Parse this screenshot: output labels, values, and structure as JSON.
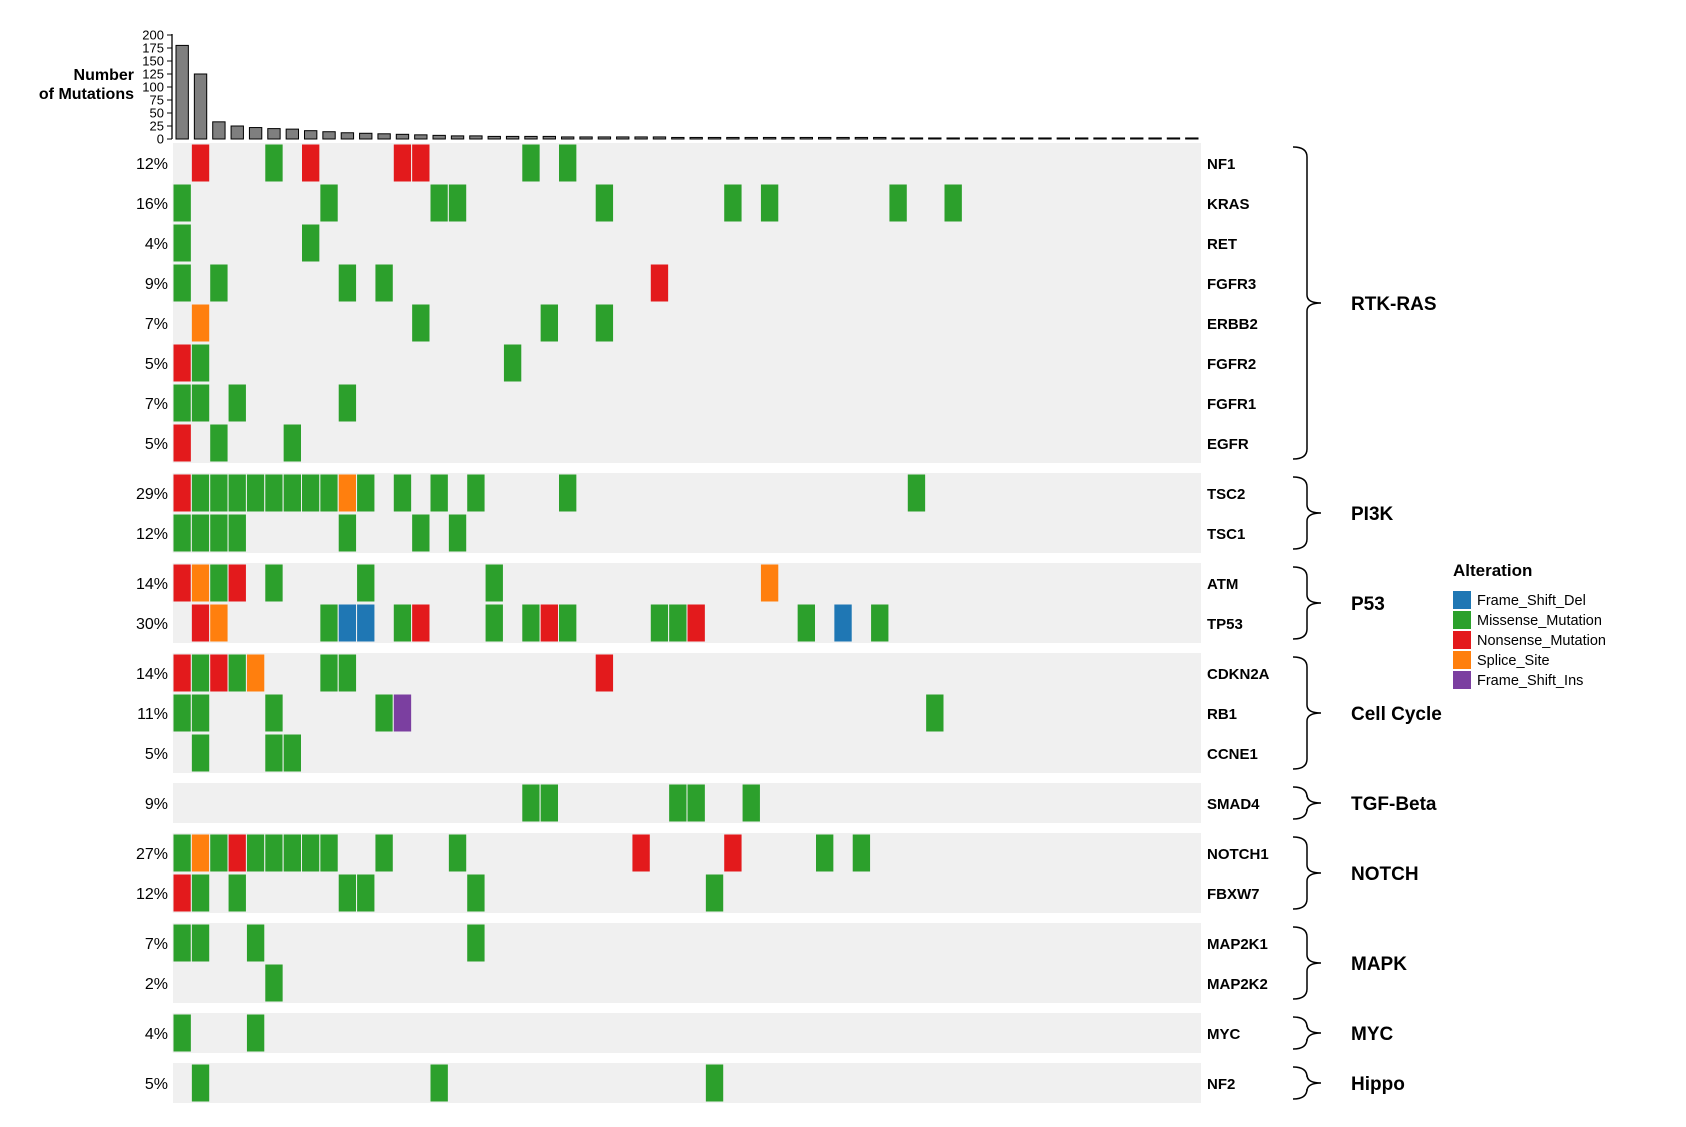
{
  "chart_data": {
    "type": "heatmap",
    "subtype": "oncoplot",
    "topbar": {
      "ylabel_line1": "Number",
      "ylabel_line2": "of Mutations",
      "ylim": [
        0,
        200
      ],
      "ticks": [
        "200",
        "175",
        "150",
        "125",
        "100",
        "75",
        "50",
        "25",
        "0"
      ],
      "bar_color": "#7f7f7f",
      "values": [
        180,
        125,
        33,
        25,
        22,
        20,
        19,
        16,
        14,
        12,
        11,
        10,
        9,
        8,
        7,
        6,
        6,
        5,
        5,
        5,
        5,
        4,
        4,
        4,
        4,
        4,
        4,
        3,
        3,
        3,
        3,
        3,
        3,
        3,
        3,
        3,
        3,
        3,
        3,
        2,
        2,
        2,
        2,
        2,
        2,
        2,
        2,
        2,
        2,
        2,
        2,
        2,
        2,
        2,
        2,
        2
      ]
    },
    "n_samples": 56,
    "legend": {
      "title": "Alteration",
      "placement": "right",
      "items": [
        {
          "key": "FSD",
          "label": "Frame_Shift_Del",
          "color": "#1f77b4"
        },
        {
          "key": "MIS",
          "label": "Missense_Mutation",
          "color": "#2ca02c"
        },
        {
          "key": "NON",
          "label": "Nonsense_Mutation",
          "color": "#e31a1c"
        },
        {
          "key": "SPL",
          "label": "Splice_Site",
          "color": "#ff7f0e"
        },
        {
          "key": "FSI",
          "label": "Frame_Shift_Ins",
          "color": "#7b3fa0"
        }
      ]
    },
    "colors": {
      "FSD": "#1f77b4",
      "MIS": "#2ca02c",
      "NON": "#e31a1c",
      "SPL": "#ff7f0e",
      "FSI": "#7b3fa0",
      "background": "#f0f0f0"
    },
    "pathways": [
      {
        "name": "RTK-RAS",
        "genes": [
          {
            "gene": "NF1",
            "pct": "12%",
            "cells": [
              [
                1,
                "NON"
              ],
              [
                5,
                "MIS"
              ],
              [
                7,
                "NON"
              ],
              [
                12,
                "NON"
              ],
              [
                13,
                "NON"
              ],
              [
                19,
                "MIS"
              ],
              [
                21,
                "MIS"
              ]
            ]
          },
          {
            "gene": "KRAS",
            "pct": "16%",
            "cells": [
              [
                0,
                "MIS"
              ],
              [
                8,
                "MIS"
              ],
              [
                14,
                "MIS"
              ],
              [
                15,
                "MIS"
              ],
              [
                23,
                "MIS"
              ],
              [
                30,
                "MIS"
              ],
              [
                32,
                "MIS"
              ],
              [
                39,
                "MIS"
              ],
              [
                42,
                "MIS"
              ]
            ]
          },
          {
            "gene": "RET",
            "pct": "4%",
            "cells": [
              [
                0,
                "MIS"
              ],
              [
                7,
                "MIS"
              ]
            ]
          },
          {
            "gene": "FGFR3",
            "pct": "9%",
            "cells": [
              [
                0,
                "MIS"
              ],
              [
                2,
                "MIS"
              ],
              [
                9,
                "MIS"
              ],
              [
                11,
                "MIS"
              ],
              [
                26,
                "NON"
              ]
            ]
          },
          {
            "gene": "ERBB2",
            "pct": "7%",
            "cells": [
              [
                1,
                "SPL"
              ],
              [
                13,
                "MIS"
              ],
              [
                20,
                "MIS"
              ],
              [
                23,
                "MIS"
              ]
            ]
          },
          {
            "gene": "FGFR2",
            "pct": "5%",
            "cells": [
              [
                0,
                "NON"
              ],
              [
                1,
                "MIS"
              ],
              [
                18,
                "MIS"
              ]
            ]
          },
          {
            "gene": "FGFR1",
            "pct": "7%",
            "cells": [
              [
                0,
                "MIS"
              ],
              [
                1,
                "MIS"
              ],
              [
                3,
                "MIS"
              ],
              [
                9,
                "MIS"
              ]
            ]
          },
          {
            "gene": "EGFR",
            "pct": "5%",
            "cells": [
              [
                0,
                "NON"
              ],
              [
                2,
                "MIS"
              ],
              [
                6,
                "MIS"
              ]
            ]
          }
        ]
      },
      {
        "name": "PI3K",
        "genes": [
          {
            "gene": "TSC2",
            "pct": "29%",
            "cells": [
              [
                0,
                "NON"
              ],
              [
                1,
                "MIS"
              ],
              [
                2,
                "MIS"
              ],
              [
                3,
                "MIS"
              ],
              [
                4,
                "MIS"
              ],
              [
                5,
                "MIS"
              ],
              [
                6,
                "MIS"
              ],
              [
                7,
                "MIS"
              ],
              [
                8,
                "MIS"
              ],
              [
                9,
                "SPL"
              ],
              [
                10,
                "MIS"
              ],
              [
                12,
                "MIS"
              ],
              [
                14,
                "MIS"
              ],
              [
                16,
                "MIS"
              ],
              [
                21,
                "MIS"
              ],
              [
                40,
                "MIS"
              ]
            ]
          },
          {
            "gene": "TSC1",
            "pct": "12%",
            "cells": [
              [
                0,
                "MIS"
              ],
              [
                1,
                "MIS"
              ],
              [
                2,
                "MIS"
              ],
              [
                3,
                "MIS"
              ],
              [
                9,
                "MIS"
              ],
              [
                13,
                "MIS"
              ],
              [
                15,
                "MIS"
              ]
            ]
          }
        ]
      },
      {
        "name": "P53",
        "genes": [
          {
            "gene": "ATM",
            "pct": "14%",
            "cells": [
              [
                0,
                "NON"
              ],
              [
                1,
                "SPL"
              ],
              [
                2,
                "MIS"
              ],
              [
                3,
                "NON"
              ],
              [
                5,
                "MIS"
              ],
              [
                10,
                "MIS"
              ],
              [
                17,
                "MIS"
              ],
              [
                32,
                "SPL"
              ]
            ]
          },
          {
            "gene": "TP53",
            "pct": "30%",
            "cells": [
              [
                1,
                "NON"
              ],
              [
                2,
                "SPL"
              ],
              [
                8,
                "MIS"
              ],
              [
                9,
                "FSD"
              ],
              [
                10,
                "FSD"
              ],
              [
                12,
                "MIS"
              ],
              [
                13,
                "NON"
              ],
              [
                17,
                "MIS"
              ],
              [
                19,
                "MIS"
              ],
              [
                20,
                "NON"
              ],
              [
                21,
                "MIS"
              ],
              [
                26,
                "MIS"
              ],
              [
                27,
                "MIS"
              ],
              [
                28,
                "NON"
              ],
              [
                34,
                "MIS"
              ],
              [
                36,
                "FSD"
              ],
              [
                38,
                "MIS"
              ]
            ]
          }
        ]
      },
      {
        "name": "Cell Cycle",
        "genes": [
          {
            "gene": "CDKN2A",
            "pct": "14%",
            "cells": [
              [
                0,
                "NON"
              ],
              [
                1,
                "MIS"
              ],
              [
                2,
                "NON"
              ],
              [
                3,
                "MIS"
              ],
              [
                4,
                "SPL"
              ],
              [
                8,
                "MIS"
              ],
              [
                9,
                "MIS"
              ],
              [
                23,
                "NON"
              ]
            ]
          },
          {
            "gene": "RB1",
            "pct": "11%",
            "cells": [
              [
                0,
                "MIS"
              ],
              [
                1,
                "MIS"
              ],
              [
                5,
                "MIS"
              ],
              [
                11,
                "MIS"
              ],
              [
                12,
                "FSI"
              ],
              [
                41,
                "MIS"
              ]
            ]
          },
          {
            "gene": "CCNE1",
            "pct": "5%",
            "cells": [
              [
                1,
                "MIS"
              ],
              [
                5,
                "MIS"
              ],
              [
                6,
                "MIS"
              ]
            ]
          }
        ]
      },
      {
        "name": "TGF-Beta",
        "genes": [
          {
            "gene": "SMAD4",
            "pct": "9%",
            "cells": [
              [
                19,
                "MIS"
              ],
              [
                20,
                "MIS"
              ],
              [
                27,
                "MIS"
              ],
              [
                28,
                "MIS"
              ],
              [
                31,
                "MIS"
              ]
            ]
          }
        ]
      },
      {
        "name": "NOTCH",
        "genes": [
          {
            "gene": "NOTCH1",
            "pct": "27%",
            "cells": [
              [
                0,
                "MIS"
              ],
              [
                1,
                "SPL"
              ],
              [
                2,
                "MIS"
              ],
              [
                3,
                "NON"
              ],
              [
                4,
                "MIS"
              ],
              [
                5,
                "MIS"
              ],
              [
                6,
                "MIS"
              ],
              [
                7,
                "MIS"
              ],
              [
                8,
                "MIS"
              ],
              [
                11,
                "MIS"
              ],
              [
                15,
                "MIS"
              ],
              [
                25,
                "NON"
              ],
              [
                30,
                "NON"
              ],
              [
                35,
                "MIS"
              ],
              [
                37,
                "MIS"
              ]
            ]
          },
          {
            "gene": "FBXW7",
            "pct": "12%",
            "cells": [
              [
                0,
                "NON"
              ],
              [
                1,
                "MIS"
              ],
              [
                3,
                "MIS"
              ],
              [
                9,
                "MIS"
              ],
              [
                10,
                "MIS"
              ],
              [
                16,
                "MIS"
              ],
              [
                29,
                "MIS"
              ]
            ]
          }
        ]
      },
      {
        "name": "MAPK",
        "genes": [
          {
            "gene": "MAP2K1",
            "pct": "7%",
            "cells": [
              [
                0,
                "MIS"
              ],
              [
                1,
                "MIS"
              ],
              [
                4,
                "MIS"
              ],
              [
                16,
                "MIS"
              ]
            ]
          },
          {
            "gene": "MAP2K2",
            "pct": "2%",
            "cells": [
              [
                5,
                "MIS"
              ]
            ]
          }
        ]
      },
      {
        "name": "MYC",
        "genes": [
          {
            "gene": "MYC",
            "pct": "4%",
            "cells": [
              [
                0,
                "MIS"
              ],
              [
                4,
                "MIS"
              ]
            ]
          }
        ]
      },
      {
        "name": "Hippo",
        "genes": [
          {
            "gene": "NF2",
            "pct": "5%",
            "cells": [
              [
                1,
                "MIS"
              ],
              [
                14,
                "MIS"
              ],
              [
                29,
                "MIS"
              ]
            ]
          }
        ]
      }
    ]
  }
}
